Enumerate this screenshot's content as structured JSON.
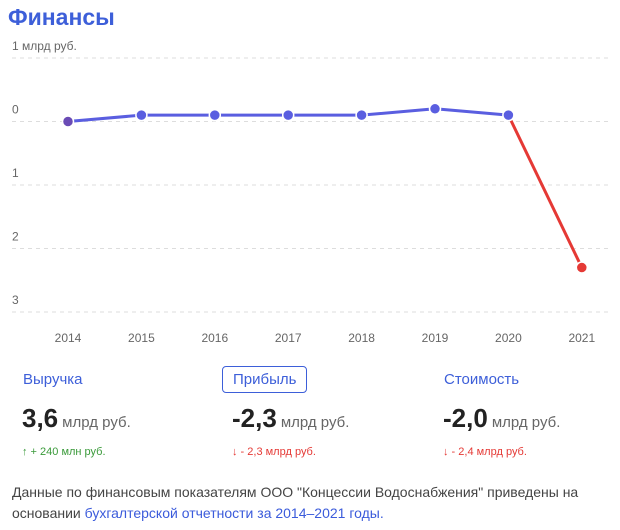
{
  "header": {
    "title": "Финансы"
  },
  "chart_data": {
    "type": "line",
    "categories": [
      "2014",
      "2015",
      "2016",
      "2017",
      "2018",
      "2019",
      "2020",
      "2021"
    ],
    "values": [
      0,
      0.1,
      0.1,
      0.1,
      0.1,
      0.2,
      0.1,
      -2.3
    ],
    "point_colors": [
      "#6a4bb5",
      "#5a5ee0",
      "#5a5ee0",
      "#5a5ee0",
      "#5a5ee0",
      "#5a5ee0",
      "#5a5ee0",
      "#e53935"
    ],
    "ylim": [
      -3,
      1
    ],
    "yticks": [
      {
        "value": 1,
        "label": "1 млрд руб."
      },
      0,
      {
        "value": -1,
        "label": "1"
      },
      {
        "value": -2,
        "label": "2"
      },
      {
        "value": -3,
        "label": "3"
      }
    ],
    "grid": true
  },
  "metrics": [
    {
      "label": "Выручка",
      "value": "3,6",
      "unit": "млрд руб.",
      "change": "↑ + 240 млн руб.",
      "trend": "up",
      "selected": false
    },
    {
      "label": "Прибыль",
      "value": "-2,3",
      "unit": "млрд руб.",
      "change": "↓ - 2,3 млрд руб.",
      "trend": "down",
      "selected": true
    },
    {
      "label": "Стоимость",
      "value": "-2,0",
      "unit": "млрд руб.",
      "change": "↓ - 2,4 млрд руб.",
      "trend": "down",
      "selected": false
    }
  ],
  "footnote": {
    "text": "Данные по финансовым показателям ООО \"Концессии Водоснабжения\" приведены на основании",
    "link": "бухгалтерской отчетности за 2014–2021 годы."
  }
}
